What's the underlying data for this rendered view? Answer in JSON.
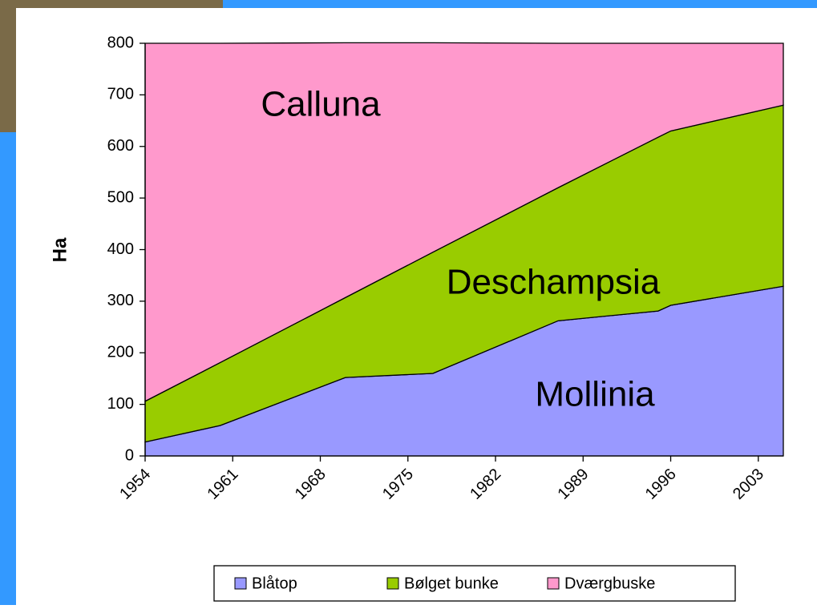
{
  "chart_data": {
    "type": "stacked-area",
    "y_label": "Ha",
    "x": [
      1954,
      1960,
      1970,
      1977,
      1987,
      1995,
      1996,
      2005
    ],
    "xlim": [
      1954,
      2005
    ],
    "xticks": [
      1954,
      1961,
      1968,
      1975,
      1982,
      1989,
      1996,
      2003
    ],
    "ylim": [
      0,
      800
    ],
    "yticks": [
      0,
      100,
      200,
      300,
      400,
      500,
      600,
      700,
      800
    ],
    "series": [
      {
        "name": "Blåtop",
        "color": "#9999ff",
        "values": [
          27,
          59,
          152,
          160,
          262,
          281,
          292,
          329
        ]
      },
      {
        "name": "Bølget bunke",
        "color": "#99cc00",
        "values": [
          79,
          122,
          155,
          235,
          258,
          337,
          338,
          351
        ]
      },
      {
        "name": "Dværgbuske",
        "color": "#ff99cc",
        "values": [
          694,
          619,
          494,
          406,
          280,
          182,
          170,
          120
        ]
      }
    ],
    "annotations": [
      "Calluna",
      "Deschampsia",
      "Mollinia"
    ],
    "legend": "bottom"
  }
}
